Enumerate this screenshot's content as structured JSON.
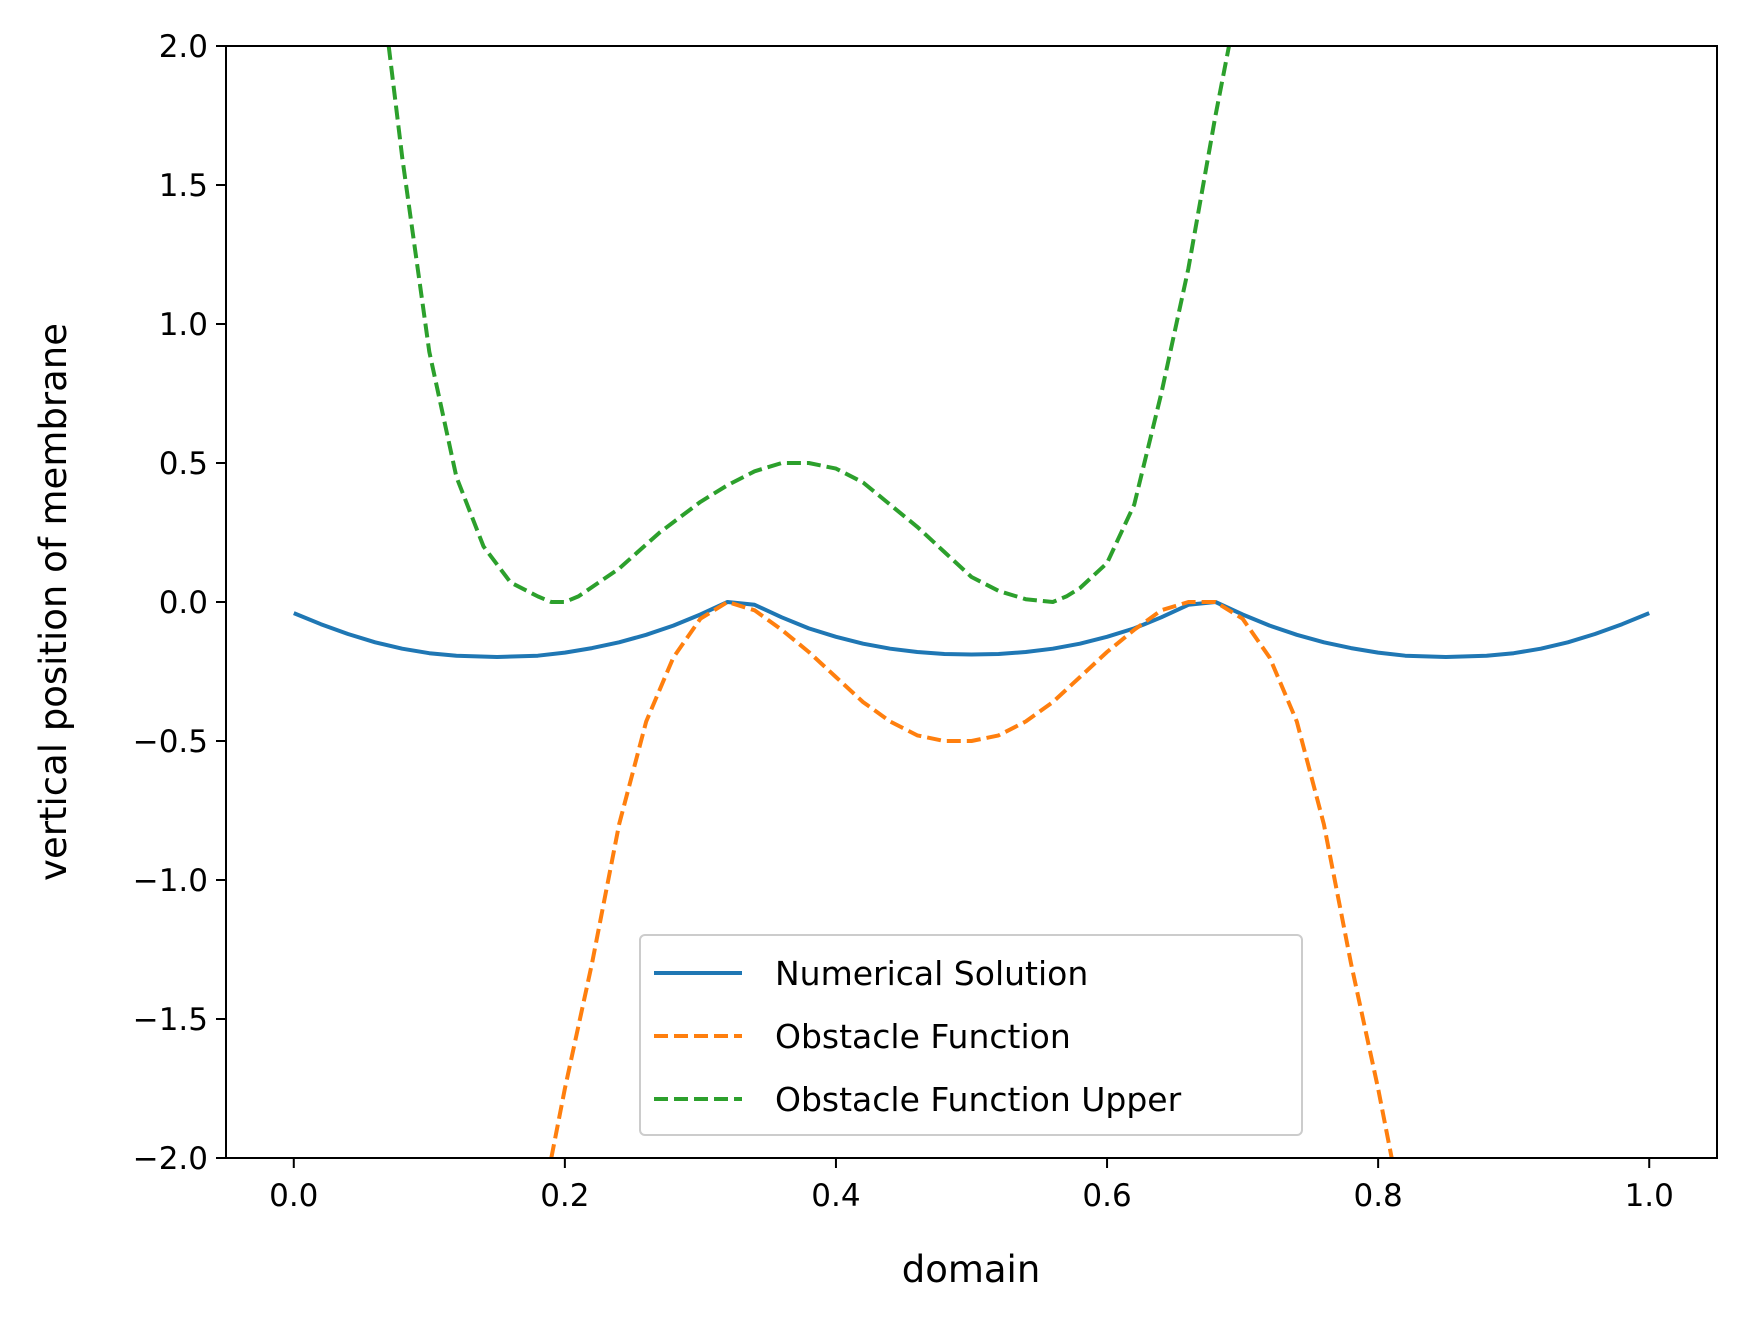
{
  "chart_data": {
    "type": "line",
    "title": "",
    "xlabel": "domain",
    "ylabel": "vertical position of membrane",
    "xlim": [
      -0.05,
      1.05
    ],
    "ylim": [
      -2.0,
      2.0
    ],
    "x_ticks": [
      0.0,
      0.2,
      0.4,
      0.6,
      0.8,
      1.0
    ],
    "x_tick_labels": [
      "0.0",
      "0.2",
      "0.4",
      "0.6",
      "0.8",
      "1.0"
    ],
    "y_ticks": [
      -2.0,
      -1.5,
      -1.0,
      -0.5,
      0.0,
      0.5,
      1.0,
      1.5,
      2.0
    ],
    "y_tick_labels": [
      "−2.0",
      "−1.5",
      "−1.0",
      "−0.5",
      "0.0",
      "0.5",
      "1.0",
      "1.5",
      "2.0"
    ],
    "grid": false,
    "legend_position": "lower-center",
    "series": [
      {
        "name": "Numerical Solution",
        "color": "#1f77b4",
        "style": "solid",
        "x": [
          0.0,
          0.02,
          0.04,
          0.06,
          0.08,
          0.1,
          0.12,
          0.15,
          0.18,
          0.2,
          0.22,
          0.24,
          0.26,
          0.28,
          0.3,
          0.32,
          0.34,
          0.36,
          0.38,
          0.4,
          0.42,
          0.44,
          0.46,
          0.48,
          0.5,
          0.52,
          0.54,
          0.56,
          0.58,
          0.6,
          0.62,
          0.64,
          0.66,
          0.68,
          0.7,
          0.72,
          0.74,
          0.76,
          0.78,
          0.8,
          0.82,
          0.85,
          0.88,
          0.9,
          0.92,
          0.94,
          0.96,
          0.98,
          1.0
        ],
        "y": [
          -0.04,
          -0.08,
          -0.115,
          -0.145,
          -0.168,
          -0.184,
          -0.193,
          -0.198,
          -0.193,
          -0.182,
          -0.166,
          -0.145,
          -0.118,
          -0.085,
          -0.045,
          0.0,
          -0.01,
          -0.055,
          -0.095,
          -0.125,
          -0.15,
          -0.168,
          -0.18,
          -0.187,
          -0.189,
          -0.187,
          -0.18,
          -0.168,
          -0.15,
          -0.125,
          -0.095,
          -0.055,
          -0.01,
          0.0,
          -0.045,
          -0.085,
          -0.118,
          -0.145,
          -0.166,
          -0.182,
          -0.193,
          -0.198,
          -0.193,
          -0.184,
          -0.168,
          -0.145,
          -0.115,
          -0.08,
          -0.04
        ]
      },
      {
        "name": "Obstacle Function",
        "color": "#ff7f0e",
        "style": "dashed",
        "x": [
          0.19,
          0.2,
          0.22,
          0.24,
          0.26,
          0.28,
          0.3,
          0.32,
          0.34,
          0.36,
          0.38,
          0.4,
          0.42,
          0.44,
          0.46,
          0.48,
          0.5,
          0.52,
          0.54,
          0.56,
          0.58,
          0.6,
          0.62,
          0.64,
          0.66,
          0.68,
          0.7,
          0.72,
          0.74,
          0.76,
          0.78,
          0.8,
          0.81
        ],
        "y": [
          -2.0,
          -1.75,
          -1.3,
          -0.8,
          -0.43,
          -0.2,
          -0.06,
          0.0,
          -0.03,
          -0.1,
          -0.18,
          -0.27,
          -0.36,
          -0.43,
          -0.48,
          -0.5,
          -0.5,
          -0.48,
          -0.43,
          -0.36,
          -0.27,
          -0.18,
          -0.1,
          -0.03,
          0.0,
          0.0,
          -0.06,
          -0.2,
          -0.43,
          -0.8,
          -1.3,
          -1.75,
          -2.0
        ]
      },
      {
        "name": "Obstacle Function Upper",
        "color": "#2ca02c",
        "style": "dashed",
        "x": [
          0.07,
          0.08,
          0.1,
          0.12,
          0.14,
          0.16,
          0.18,
          0.19,
          0.2,
          0.21,
          0.24,
          0.27,
          0.3,
          0.32,
          0.34,
          0.36,
          0.38,
          0.4,
          0.42,
          0.44,
          0.46,
          0.48,
          0.5,
          0.52,
          0.54,
          0.56,
          0.57,
          0.58,
          0.6,
          0.62,
          0.64,
          0.66,
          0.68,
          0.69
        ],
        "y": [
          2.0,
          1.6,
          0.9,
          0.45,
          0.2,
          0.07,
          0.02,
          0.0,
          0.0,
          0.02,
          0.12,
          0.25,
          0.36,
          0.42,
          0.47,
          0.5,
          0.5,
          0.48,
          0.43,
          0.35,
          0.27,
          0.18,
          0.09,
          0.04,
          0.01,
          0.0,
          0.02,
          0.05,
          0.14,
          0.35,
          0.75,
          1.2,
          1.75,
          2.0
        ]
      }
    ]
  }
}
